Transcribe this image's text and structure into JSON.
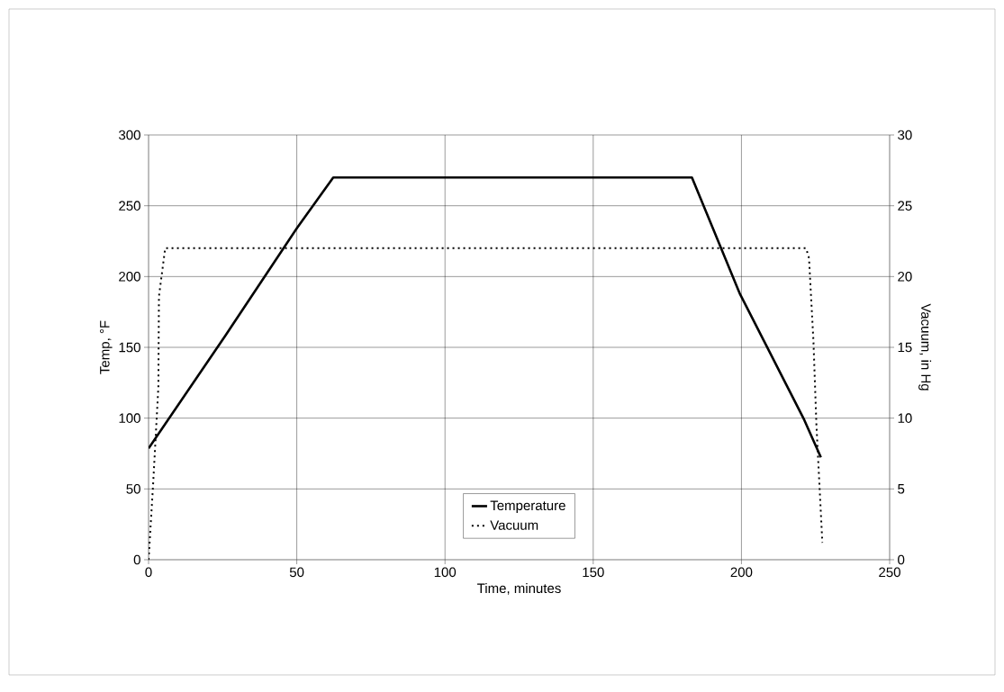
{
  "chart_data": {
    "type": "line",
    "xlabel": "Time, minutes",
    "ylabel": "Temp, °F",
    "y2label": "Vacuum, in Hg",
    "xlim": [
      0,
      250
    ],
    "xticks": [
      0,
      50,
      100,
      150,
      200,
      250
    ],
    "ylim": [
      0,
      300
    ],
    "yticks": [
      0,
      50,
      100,
      150,
      200,
      250,
      300
    ],
    "y2lim": [
      0,
      30
    ],
    "y2ticks": [
      0,
      5,
      10,
      15,
      20,
      25,
      30
    ],
    "grid": true,
    "legend": "bottom",
    "marker": "none",
    "series": [
      {
        "name": "Temperature",
        "color": "#000000",
        "line_style": "solid",
        "x": [
          0,
          25.8,
          50.1,
          62.3,
          183.3,
          199.5,
          221.2,
          226.8
        ],
        "values": [
          78.6,
          158,
          234.4,
          270,
          270,
          187.7,
          98.7,
          72.3
        ]
      },
      {
        "name": "Vacuum",
        "color": "#000000",
        "line_style": "dotted",
        "axis": "y2",
        "x": [
          0,
          1.5,
          3.3,
          3.5,
          5.6,
          221.8,
          222.8,
          224.3,
          225.3,
          227.3
        ],
        "values": [
          0,
          5.2,
          12.2,
          18.6,
          22,
          22,
          21.3,
          15.4,
          9.5,
          1.2
        ]
      }
    ]
  }
}
